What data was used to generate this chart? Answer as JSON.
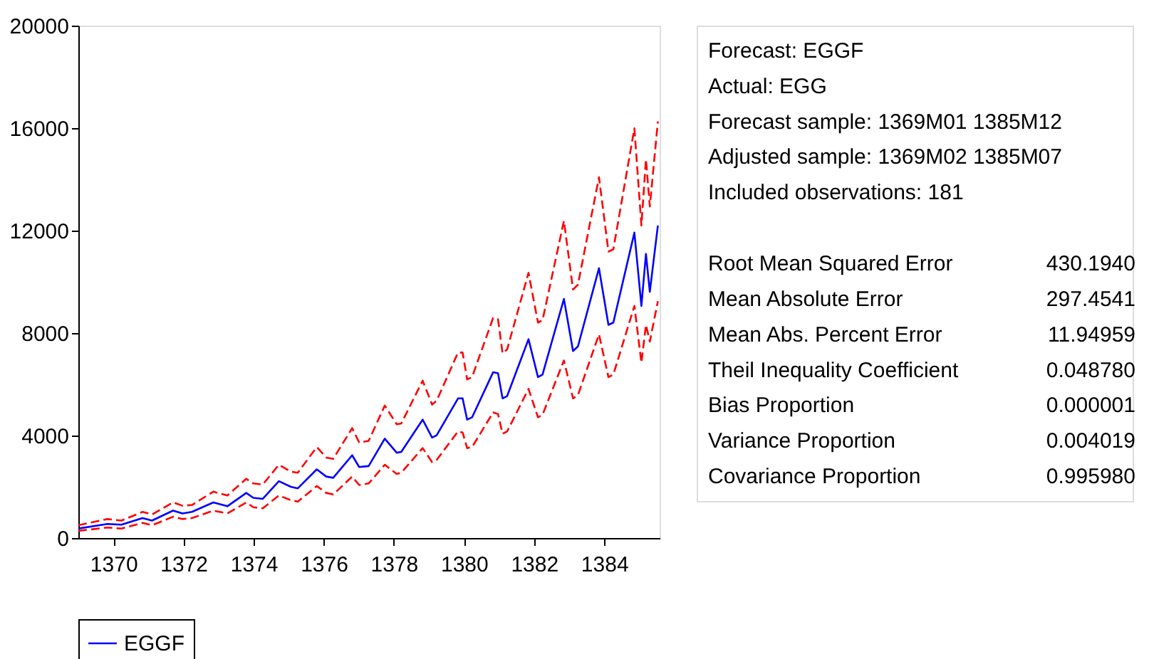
{
  "chart_data": [
    {
      "type": "line",
      "xlim": [
        1369,
        1385.58
      ],
      "xticks": [
        1370,
        1372,
        1374,
        1376,
        1378,
        1380,
        1382,
        1384
      ],
      "ylim": [
        0,
        20000
      ],
      "yticks": [
        0,
        4000,
        8000,
        12000,
        16000,
        20000
      ],
      "grid": false,
      "legend": "bottom",
      "marker": "none",
      "x": [
        1369.0,
        1369.83,
        1370.23,
        1370.83,
        1371.1,
        1371.7,
        1371.97,
        1372.24,
        1372.85,
        1373.25,
        1373.79,
        1373.99,
        1374.26,
        1374.72,
        1375.06,
        1375.26,
        1375.8,
        1376.07,
        1376.27,
        1376.81,
        1377.01,
        1377.28,
        1377.74,
        1378.08,
        1378.21,
        1378.82,
        1379.09,
        1379.22,
        1379.83,
        1379.96,
        1380.09,
        1380.23,
        1380.83,
        1380.97,
        1381.1,
        1381.23,
        1381.84,
        1382.11,
        1382.24,
        1382.85,
        1383.11,
        1383.25,
        1383.85,
        1384.12,
        1384.26,
        1384.86,
        1385.06,
        1385.19,
        1385.3,
        1385.53
      ],
      "series": [
        {
          "name": "EGGF",
          "color": "#0000ff",
          "line_style": "solid",
          "values": [
            370,
            550,
            520,
            780,
            680,
            1070,
            960,
            1020,
            1390,
            1240,
            1760,
            1570,
            1530,
            2220,
            2000,
            1940,
            2680,
            2400,
            2350,
            3230,
            2770,
            2810,
            3880,
            3330,
            3360,
            4620,
            3920,
            4010,
            5450,
            5450,
            4620,
            4710,
            6470,
            6430,
            5450,
            5540,
            7760,
            6280,
            6380,
            9330,
            7300,
            7480,
            10530,
            8320,
            8410,
            11920,
            9060,
            11090,
            9610,
            12200
          ]
        },
        {
          "color": "#ff0000",
          "line_style": "dashed",
          "values": [
            500,
            740,
            680,
            1020,
            920,
            1390,
            1260,
            1290,
            1810,
            1660,
            2310,
            2130,
            2090,
            2860,
            2590,
            2550,
            3550,
            3140,
            3090,
            4290,
            3730,
            3790,
            5170,
            4440,
            4470,
            6140,
            5210,
            5360,
            7240,
            7240,
            6190,
            6280,
            8590,
            8540,
            7210,
            7360,
            10350,
            8410,
            8500,
            12380,
            9700,
            9890,
            14080,
            11180,
            11270,
            15990,
            12200,
            14780,
            12940,
            16260
          ]
        },
        {
          "color": "#ff0000",
          "line_style": "dashed",
          "values": [
            280,
            410,
            370,
            590,
            500,
            830,
            740,
            780,
            1070,
            960,
            1390,
            1200,
            1160,
            1660,
            1480,
            1420,
            2030,
            1760,
            1700,
            2400,
            2070,
            2130,
            2860,
            2500,
            2550,
            3510,
            2960,
            3050,
            4160,
            4120,
            3510,
            3550,
            4900,
            4840,
            4070,
            4160,
            5820,
            4710,
            4810,
            6930,
            5450,
            5580,
            7950,
            6280,
            6380,
            9060,
            6840,
            8320,
            7670,
            9240
          ]
        }
      ]
    },
    {
      "type": "other",
      "annotations": [
        "Forecast: EGGF",
        "Actual: EGG",
        "Forecast sample: 1369M01 1385M12",
        "Adjusted sample: 1369M02 1385M07",
        "Included observations: 181"
      ],
      "categories": [
        "Root Mean Squared Error",
        "Mean Absolute Error",
        "Mean Abs. Percent Error",
        "Theil Inequality Coefficient",
        "    Bias Proportion",
        "    Variance Proportion",
        "    Covariance Proportion"
      ],
      "value_labels": [
        "430.1940",
        "297.4541",
        "11.94959",
        "0.048780",
        "0.000001",
        "0.004019",
        "0.995980"
      ]
    }
  ]
}
